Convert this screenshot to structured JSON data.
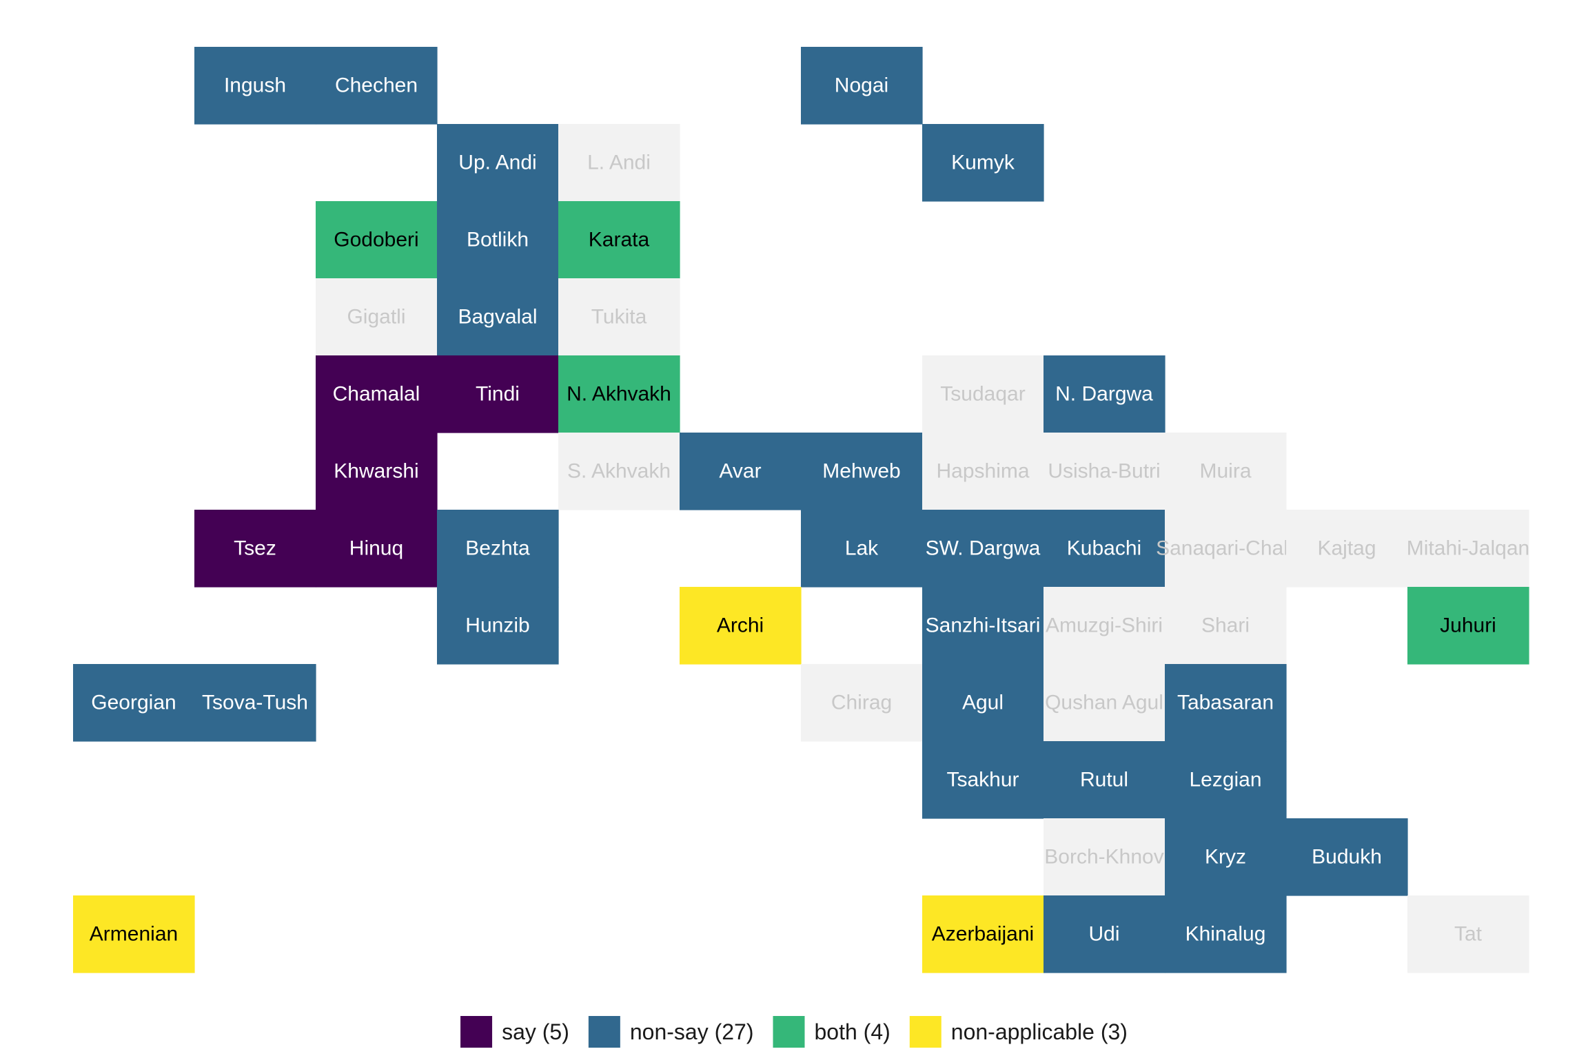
{
  "chart_data": {
    "type": "heatmap",
    "title": "",
    "xlabel": "",
    "ylabel": "",
    "grid": false,
    "legend_position": "bottom",
    "categories": [
      {
        "key": "say",
        "label": "say (5)",
        "color": "#440154",
        "text_color": "#ffffff"
      },
      {
        "key": "non-say",
        "label": "non-say (27)",
        "color": "#31688e",
        "text_color": "#ffffff"
      },
      {
        "key": "both",
        "label": "both (4)",
        "color": "#35b779",
        "text_color": "#000000"
      },
      {
        "key": "non-applicable",
        "label": "non-applicable (3)",
        "color": "#fde725",
        "text_color": "#000000"
      },
      {
        "key": "no-data",
        "label": "",
        "color": "#f2f2f2",
        "text_color": "#c8c8c8"
      }
    ],
    "tiles": [
      {
        "name": "Ingush",
        "col": 1,
        "row": 0,
        "cat": "non-say"
      },
      {
        "name": "Chechen",
        "col": 2,
        "row": 0,
        "cat": "non-say"
      },
      {
        "name": "Nogai",
        "col": 6,
        "row": 0,
        "cat": "non-say"
      },
      {
        "name": "Up. Andi",
        "col": 3,
        "row": 1,
        "cat": "non-say"
      },
      {
        "name": "L. Andi",
        "col": 4,
        "row": 1,
        "cat": "no-data"
      },
      {
        "name": "Kumyk",
        "col": 7,
        "row": 1,
        "cat": "non-say"
      },
      {
        "name": "Godoberi",
        "col": 2,
        "row": 2,
        "cat": "both"
      },
      {
        "name": "Botlikh",
        "col": 3,
        "row": 2,
        "cat": "non-say"
      },
      {
        "name": "Karata",
        "col": 4,
        "row": 2,
        "cat": "both"
      },
      {
        "name": "Gigatli",
        "col": 2,
        "row": 3,
        "cat": "no-data"
      },
      {
        "name": "Bagvalal",
        "col": 3,
        "row": 3,
        "cat": "non-say"
      },
      {
        "name": "Tukita",
        "col": 4,
        "row": 3,
        "cat": "no-data"
      },
      {
        "name": "Chamalal",
        "col": 2,
        "row": 4,
        "cat": "say"
      },
      {
        "name": "Tindi",
        "col": 3,
        "row": 4,
        "cat": "say"
      },
      {
        "name": "N. Akhvakh",
        "col": 4,
        "row": 4,
        "cat": "both"
      },
      {
        "name": "Tsudaqar",
        "col": 7,
        "row": 4,
        "cat": "no-data"
      },
      {
        "name": "N. Dargwa",
        "col": 8,
        "row": 4,
        "cat": "non-say"
      },
      {
        "name": "Khwarshi",
        "col": 2,
        "row": 5,
        "cat": "say"
      },
      {
        "name": "S. Akhvakh",
        "col": 4,
        "row": 5,
        "cat": "no-data"
      },
      {
        "name": "Avar",
        "col": 5,
        "row": 5,
        "cat": "non-say"
      },
      {
        "name": "Mehweb",
        "col": 6,
        "row": 5,
        "cat": "non-say"
      },
      {
        "name": "Hapshima",
        "col": 7,
        "row": 5,
        "cat": "no-data"
      },
      {
        "name": "Usisha-Butri",
        "col": 8,
        "row": 5,
        "cat": "no-data"
      },
      {
        "name": "Muira",
        "col": 9,
        "row": 5,
        "cat": "no-data"
      },
      {
        "name": "Tsez",
        "col": 1,
        "row": 6,
        "cat": "say"
      },
      {
        "name": "Hinuq",
        "col": 2,
        "row": 6,
        "cat": "say"
      },
      {
        "name": "Bezhta",
        "col": 3,
        "row": 6,
        "cat": "non-say"
      },
      {
        "name": "Lak",
        "col": 6,
        "row": 6,
        "cat": "non-say"
      },
      {
        "name": "SW. Dargwa",
        "col": 7,
        "row": 6,
        "cat": "non-say"
      },
      {
        "name": "Kubachi",
        "col": 8,
        "row": 6,
        "cat": "non-say"
      },
      {
        "name": "Sanaqari-Chah",
        "col": 9,
        "row": 6,
        "cat": "no-data"
      },
      {
        "name": "Kajtag",
        "col": 10,
        "row": 6,
        "cat": "no-data"
      },
      {
        "name": "Mitahi-Jalqan",
        "col": 11,
        "row": 6,
        "cat": "no-data"
      },
      {
        "name": "Hunzib",
        "col": 3,
        "row": 7,
        "cat": "non-say"
      },
      {
        "name": "Archi",
        "col": 5,
        "row": 7,
        "cat": "non-applicable"
      },
      {
        "name": "Sanzhi-Itsari",
        "col": 7,
        "row": 7,
        "cat": "non-say"
      },
      {
        "name": "Amuzgi-Shiri",
        "col": 8,
        "row": 7,
        "cat": "no-data"
      },
      {
        "name": "Shari",
        "col": 9,
        "row": 7,
        "cat": "no-data"
      },
      {
        "name": "Juhuri",
        "col": 11,
        "row": 7,
        "cat": "both"
      },
      {
        "name": "Georgian",
        "col": 0,
        "row": 8,
        "cat": "non-say"
      },
      {
        "name": "Tsova-Tush",
        "col": 1,
        "row": 8,
        "cat": "non-say"
      },
      {
        "name": "Chirag",
        "col": 6,
        "row": 8,
        "cat": "no-data"
      },
      {
        "name": "Agul",
        "col": 7,
        "row": 8,
        "cat": "non-say"
      },
      {
        "name": "Qushan Agul",
        "col": 8,
        "row": 8,
        "cat": "no-data"
      },
      {
        "name": "Tabasaran",
        "col": 9,
        "row": 8,
        "cat": "non-say"
      },
      {
        "name": "Tsakhur",
        "col": 7,
        "row": 9,
        "cat": "non-say"
      },
      {
        "name": "Rutul",
        "col": 8,
        "row": 9,
        "cat": "non-say"
      },
      {
        "name": "Lezgian",
        "col": 9,
        "row": 9,
        "cat": "non-say"
      },
      {
        "name": "Borch-Khnov",
        "col": 8,
        "row": 10,
        "cat": "no-data"
      },
      {
        "name": "Kryz",
        "col": 9,
        "row": 10,
        "cat": "non-say"
      },
      {
        "name": "Budukh",
        "col": 10,
        "row": 10,
        "cat": "non-say"
      },
      {
        "name": "Armenian",
        "col": 0,
        "row": 11,
        "cat": "non-applicable"
      },
      {
        "name": "Azerbaijani",
        "col": 7,
        "row": 11,
        "cat": "non-applicable"
      },
      {
        "name": "Udi",
        "col": 8,
        "row": 11,
        "cat": "non-say"
      },
      {
        "name": "Khinalug",
        "col": 9,
        "row": 11,
        "cat": "non-say"
      },
      {
        "name": "Tat",
        "col": 11,
        "row": 11,
        "cat": "no-data"
      }
    ]
  }
}
